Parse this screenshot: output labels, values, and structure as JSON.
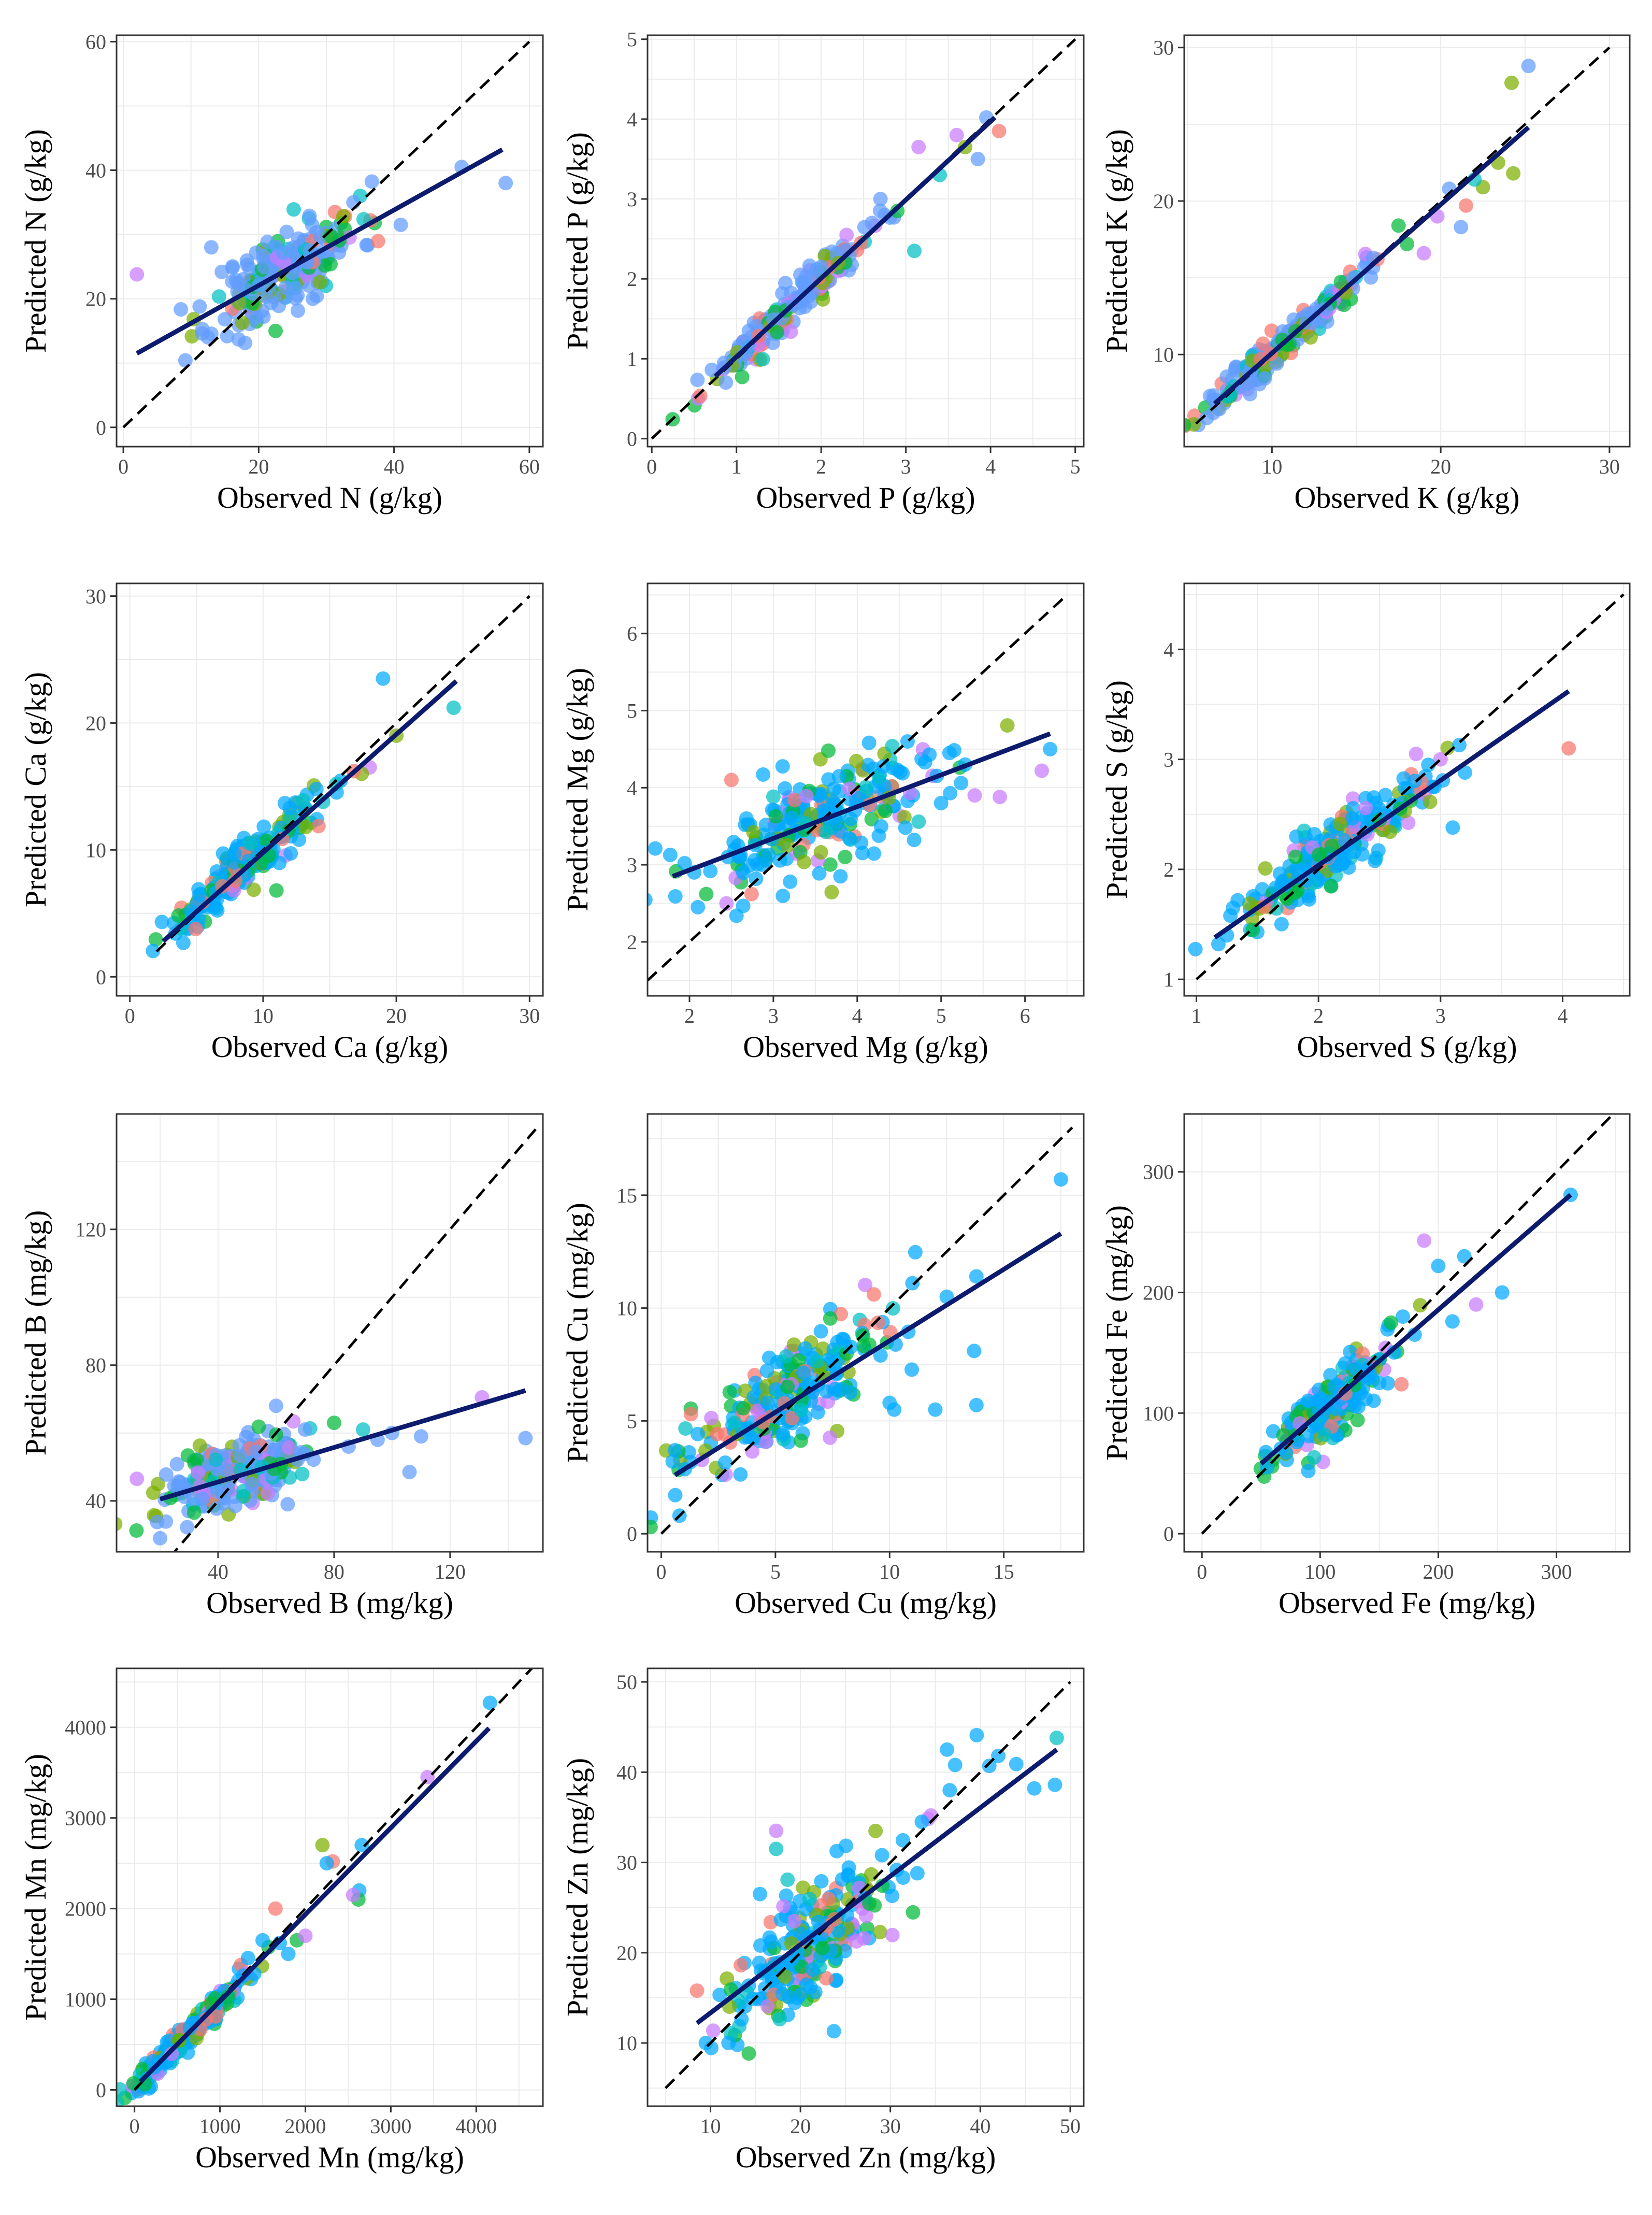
{
  "colors": {
    "point_palette": [
      "#F8766D",
      "#7CAE00",
      "#00BA38",
      "#00BFC4",
      "#619CFF",
      "#C77CFF",
      "#00A9FF"
    ],
    "fit_line": "#0D1B6E",
    "identity_line": "#000000",
    "grid": "#EBEBEB",
    "panel_border": "#333333"
  },
  "chart_data": [
    {
      "id": "N",
      "type": "scatter",
      "xlabel": "Observed N (g/kg)",
      "ylabel": "Predicted N (g/kg)",
      "xlim": [
        -1,
        62
      ],
      "ylim": [
        -3,
        61
      ],
      "xticks": [
        0,
        20,
        40,
        60
      ],
      "yticks": [
        0,
        20,
        40,
        60
      ],
      "fit": {
        "x": [
          2,
          56
        ],
        "y": [
          11.5,
          43.2
        ]
      },
      "identity": [
        0,
        60
      ],
      "cloud": {
        "cx": 24,
        "cy": 24.5,
        "sx": 5.5,
        "slope": 0.58,
        "noise": 3.2,
        "n": 220,
        "seed": 11
      },
      "outliers": [
        [
          2,
          23.8
        ],
        [
          50,
          40.5
        ],
        [
          56.5,
          38
        ],
        [
          35,
          36
        ],
        [
          34,
          35
        ],
        [
          41,
          31.5
        ],
        [
          12.5,
          14
        ],
        [
          22.5,
          15
        ],
        [
          13,
          28
        ],
        [
          28,
          20
        ]
      ]
    },
    {
      "id": "P",
      "type": "scatter",
      "xlabel": "Observed P (g/kg)",
      "ylabel": "Predicted P (g/kg)",
      "xlim": [
        -0.05,
        5.1
      ],
      "ylim": [
        -0.1,
        5.05
      ],
      "xticks": [
        0,
        1,
        2,
        3,
        4,
        5
      ],
      "yticks": [
        0,
        1,
        2,
        3,
        4,
        5
      ],
      "fit": {
        "x": [
          0.75,
          4.05
        ],
        "y": [
          0.78,
          4.02
        ]
      },
      "identity": [
        0,
        5
      ],
      "cloud": {
        "cx": 1.6,
        "cy": 1.6,
        "sx": 0.5,
        "slope": 0.98,
        "noise": 0.12,
        "n": 170,
        "seed": 23
      },
      "outliers": [
        [
          3.1,
          2.35
        ],
        [
          3.15,
          3.65
        ],
        [
          2.3,
          2.55
        ],
        [
          3.95,
          4.02
        ],
        [
          4.1,
          3.85
        ],
        [
          3.85,
          3.5
        ],
        [
          3.4,
          3.3
        ],
        [
          2.9,
          2.85
        ],
        [
          2.6,
          2.7
        ],
        [
          3.6,
          3.8
        ],
        [
          2.7,
          3.0
        ],
        [
          3.7,
          3.65
        ],
        [
          2.2,
          2.2
        ],
        [
          2.0,
          2.15
        ]
      ]
    },
    {
      "id": "K",
      "type": "scatter",
      "xlabel": "Observed K (g/kg)",
      "ylabel": "Predicted K (g/kg)",
      "xlim": [
        4.8,
        31.2
      ],
      "ylim": [
        4,
        30.8
      ],
      "xticks": [
        10,
        20,
        30
      ],
      "yticks": [
        10,
        20,
        30
      ],
      "fit": {
        "x": [
          6.6,
          25.2
        ],
        "y": [
          6.8,
          24.8
        ]
      },
      "identity": [
        5.5,
        30
      ],
      "cloud": {
        "cx": 10.5,
        "cy": 10.6,
        "sx": 2.4,
        "slope": 0.97,
        "noise": 0.6,
        "n": 190,
        "seed": 37
      },
      "outliers": [
        [
          24.2,
          27.7
        ],
        [
          25.2,
          28.8
        ],
        [
          24.3,
          21.8
        ],
        [
          22.5,
          20.9
        ],
        [
          20.5,
          20.8
        ],
        [
          21.2,
          18.3
        ],
        [
          19.8,
          19.0
        ],
        [
          18,
          17.2
        ],
        [
          17.5,
          18.4
        ],
        [
          16,
          16.3
        ],
        [
          22,
          21.4
        ],
        [
          21.5,
          19.7
        ],
        [
          19,
          16.6
        ],
        [
          23.4,
          22.5
        ]
      ]
    },
    {
      "id": "Ca",
      "type": "scatter",
      "xlabel": "Observed Ca (g/kg)",
      "ylabel": "Predicted Ca (g/kg)",
      "xlim": [
        -1,
        31
      ],
      "ylim": [
        -1.5,
        31
      ],
      "xticks": [
        0,
        10,
        20,
        30
      ],
      "yticks": [
        0,
        10,
        20,
        30
      ],
      "fit": {
        "x": [
          2.5,
          24.5
        ],
        "y": [
          2.8,
          23.3
        ]
      },
      "identity": [
        2,
        30
      ],
      "cloud": {
        "cx": 8.5,
        "cy": 8.7,
        "sx": 2.8,
        "slope": 0.93,
        "noise": 0.9,
        "n": 210,
        "seed": 41
      },
      "outliers": [
        [
          19,
          23.5
        ],
        [
          24.3,
          21.2
        ],
        [
          20,
          19
        ],
        [
          18,
          16.5
        ],
        [
          17.4,
          16
        ],
        [
          16.8,
          16.2
        ],
        [
          15.5,
          15.2
        ],
        [
          14,
          14.8
        ],
        [
          13.2,
          11.8
        ],
        [
          12,
          13.3
        ],
        [
          11,
          6.8
        ],
        [
          9,
          10.5
        ]
      ]
    },
    {
      "id": "Mg",
      "type": "scatter",
      "xlabel": "Observed Mg (g/kg)",
      "ylabel": "Predicted Mg (g/kg)",
      "xlim": [
        1.5,
        6.7
      ],
      "ylim": [
        1.3,
        6.65
      ],
      "xticks": [
        2,
        3,
        4,
        5,
        6
      ],
      "yticks": [
        2,
        3,
        4,
        5,
        6
      ],
      "fit": {
        "x": [
          1.8,
          6.3
        ],
        "y": [
          2.85,
          4.7
        ]
      },
      "identity": [
        1.5,
        6.5
      ],
      "cloud": {
        "cx": 3.6,
        "cy": 3.6,
        "sx": 0.8,
        "slope": 0.41,
        "noise": 0.35,
        "n": 230,
        "seed": 53
      },
      "outliers": [
        [
          6.3,
          4.5
        ],
        [
          6.2,
          4.22
        ],
        [
          5.7,
          3.88
        ],
        [
          5.4,
          3.9
        ],
        [
          5.1,
          4.45
        ],
        [
          5.0,
          3.8
        ],
        [
          4.6,
          4.6
        ],
        [
          2.5,
          4.1
        ],
        [
          2.1,
          2.45
        ],
        [
          2.2,
          2.62
        ],
        [
          3.2,
          2.78
        ],
        [
          3.8,
          2.85
        ]
      ]
    },
    {
      "id": "S",
      "type": "scatter",
      "xlabel": "Observed S (g/kg)",
      "ylabel": "Predicted S (g/kg)",
      "xlim": [
        0.9,
        4.55
      ],
      "ylim": [
        0.85,
        4.6
      ],
      "xticks": [
        1,
        2,
        3,
        4
      ],
      "yticks": [
        1,
        2,
        3,
        4
      ],
      "fit": {
        "x": [
          1.15,
          4.05
        ],
        "y": [
          1.38,
          3.62
        ]
      },
      "identity": [
        1,
        4.5
      ],
      "cloud": {
        "cx": 2.1,
        "cy": 2.12,
        "sx": 0.38,
        "slope": 0.78,
        "noise": 0.15,
        "n": 200,
        "seed": 67
      },
      "outliers": [
        [
          4.05,
          3.1
        ],
        [
          3.1,
          2.38
        ],
        [
          3.2,
          2.88
        ],
        [
          3.0,
          3.0
        ],
        [
          2.8,
          3.05
        ],
        [
          2.9,
          2.95
        ],
        [
          1.18,
          1.32
        ],
        [
          1.25,
          1.4
        ],
        [
          1.3,
          1.65
        ],
        [
          2.95,
          2.75
        ]
      ]
    },
    {
      "id": "B",
      "type": "scatter",
      "xlabel": "Observed B (mg/kg)",
      "ylabel": "Predicted B (mg/kg)",
      "xlim": [
        5,
        152
      ],
      "ylim": [
        25,
        154
      ],
      "xticks": [
        40,
        80,
        120
      ],
      "yticks": [
        40,
        80,
        120
      ],
      "fit": {
        "x": [
          20,
          146
        ],
        "y": [
          40.5,
          72.5
        ]
      },
      "identity": [
        10,
        150
      ],
      "cloud": {
        "cx": 45,
        "cy": 48.5,
        "sx": 13,
        "slope": 0.25,
        "noise": 5,
        "n": 230,
        "seed": 79
      },
      "outliers": [
        [
          146,
          58.5
        ],
        [
          131,
          70.5
        ],
        [
          106,
          48.5
        ],
        [
          110,
          59
        ],
        [
          100,
          60
        ],
        [
          95,
          58
        ],
        [
          90,
          61
        ],
        [
          85,
          56
        ],
        [
          80,
          63
        ],
        [
          70,
          61
        ],
        [
          64,
          39
        ],
        [
          20,
          29
        ],
        [
          12,
          46.5
        ],
        [
          60,
          68
        ]
      ]
    },
    {
      "id": "Cu",
      "type": "scatter",
      "xlabel": "Observed Cu (mg/kg)",
      "ylabel": "Predicted Cu (mg/kg)",
      "xlim": [
        -0.6,
        18.5
      ],
      "ylim": [
        -0.8,
        18.6
      ],
      "xticks": [
        0,
        5,
        10,
        15
      ],
      "yticks": [
        0,
        5,
        10,
        15
      ],
      "fit": {
        "x": [
          0.6,
          17.5
        ],
        "y": [
          2.6,
          13.3
        ]
      },
      "identity": [
        0,
        18
      ],
      "cloud": {
        "cx": 5.5,
        "cy": 6.1,
        "sx": 2.3,
        "slope": 0.64,
        "noise": 1.1,
        "n": 230,
        "seed": 83
      },
      "outliers": [
        [
          17.5,
          15.7
        ],
        [
          13.8,
          11.4
        ],
        [
          13.7,
          8.1
        ],
        [
          13.8,
          5.7
        ],
        [
          12,
          5.5
        ],
        [
          10.2,
          5.5
        ],
        [
          10,
          5.8
        ],
        [
          0.8,
          0.8
        ],
        [
          0.6,
          3.7
        ],
        [
          1.3,
          5.3
        ],
        [
          0.5,
          3.2
        ],
        [
          11,
          11.1
        ],
        [
          12.5,
          10.5
        ]
      ]
    },
    {
      "id": "Fe",
      "type": "scatter",
      "xlabel": "Observed Fe (mg/kg)",
      "ylabel": "Predicted Fe (mg/kg)",
      "xlim": [
        -15,
        362
      ],
      "ylim": [
        -15,
        348
      ],
      "xticks": [
        0,
        100,
        200,
        300
      ],
      "yticks": [
        0,
        100,
        200,
        300
      ],
      "fit": {
        "x": [
          50,
          312
        ],
        "y": [
          58,
          281
        ]
      },
      "identity": [
        0,
        350
      ],
      "cloud": {
        "cx": 105,
        "cy": 103,
        "sx": 26,
        "slope": 0.85,
        "noise": 14,
        "n": 210,
        "seed": 97
      },
      "outliers": [
        [
          312,
          281
        ],
        [
          254,
          200
        ],
        [
          232,
          190
        ],
        [
          222,
          230
        ],
        [
          212,
          176
        ],
        [
          200,
          222
        ],
        [
          188,
          243
        ],
        [
          170,
          180
        ],
        [
          180,
          165
        ],
        [
          160,
          175
        ],
        [
          90,
          52
        ],
        [
          55,
          55
        ],
        [
          150,
          125
        ]
      ]
    },
    {
      "id": "Mn",
      "type": "scatter",
      "xlabel": "Observed Mn (mg/kg)",
      "ylabel": "Predicted Mn (mg/kg)",
      "xlim": [
        -210,
        4780
      ],
      "ylim": [
        -180,
        4650
      ],
      "xticks": [
        0,
        1000,
        2000,
        3000,
        4000
      ],
      "yticks": [
        0,
        1000,
        2000,
        3000,
        4000
      ],
      "fit": {
        "x": [
          70,
          4150
        ],
        "y": [
          90,
          3990
        ]
      },
      "identity": [
        0,
        4650
      ],
      "cloud": {
        "cx": 600,
        "cy": 590,
        "sx": 380,
        "slope": 0.95,
        "noise": 75,
        "n": 200,
        "seed": 101
      },
      "outliers": [
        [
          4160,
          4270
        ],
        [
          3430,
          3450
        ],
        [
          2630,
          2200
        ],
        [
          2620,
          2100
        ],
        [
          2560,
          2150
        ],
        [
          2320,
          2520
        ],
        [
          2250,
          2500
        ],
        [
          2200,
          2700
        ],
        [
          2660,
          2700
        ],
        [
          1900,
          1650
        ],
        [
          1650,
          2000
        ],
        [
          2000,
          1700
        ],
        [
          1800,
          1500
        ],
        [
          1700,
          1620
        ],
        [
          1500,
          1650
        ]
      ]
    },
    {
      "id": "Zn",
      "type": "scatter",
      "xlabel": "Observed Zn (mg/kg)",
      "ylabel": "Predicted Zn (mg/kg)",
      "xlim": [
        3,
        51.5
      ],
      "ylim": [
        3,
        51.5
      ],
      "xticks": [
        10,
        20,
        30,
        40,
        50
      ],
      "yticks": [
        10,
        20,
        30,
        40,
        50
      ],
      "fit": {
        "x": [
          8.5,
          48.5
        ],
        "y": [
          12.2,
          42.5
        ]
      },
      "identity": [
        5,
        50
      ],
      "cloud": {
        "cx": 21,
        "cy": 20.8,
        "sx": 4.6,
        "slope": 0.76,
        "noise": 3.3,
        "n": 230,
        "seed": 113
      },
      "outliers": [
        [
          48.5,
          43.8
        ],
        [
          48.3,
          38.6
        ],
        [
          46,
          38.2
        ],
        [
          44,
          40.9
        ],
        [
          42,
          41.8
        ],
        [
          41,
          40.7
        ],
        [
          39.6,
          44.1
        ],
        [
          37.2,
          40.8
        ],
        [
          36.6,
          38
        ],
        [
          36.3,
          42.5
        ],
        [
          34.5,
          35.2
        ],
        [
          33.5,
          34.5
        ],
        [
          33,
          28.8
        ],
        [
          30.2,
          26.3
        ],
        [
          17.3,
          31.5
        ],
        [
          17.3,
          33.5
        ],
        [
          15.5,
          26.5
        ],
        [
          8.5,
          15.8
        ],
        [
          12,
          10
        ]
      ]
    }
  ]
}
